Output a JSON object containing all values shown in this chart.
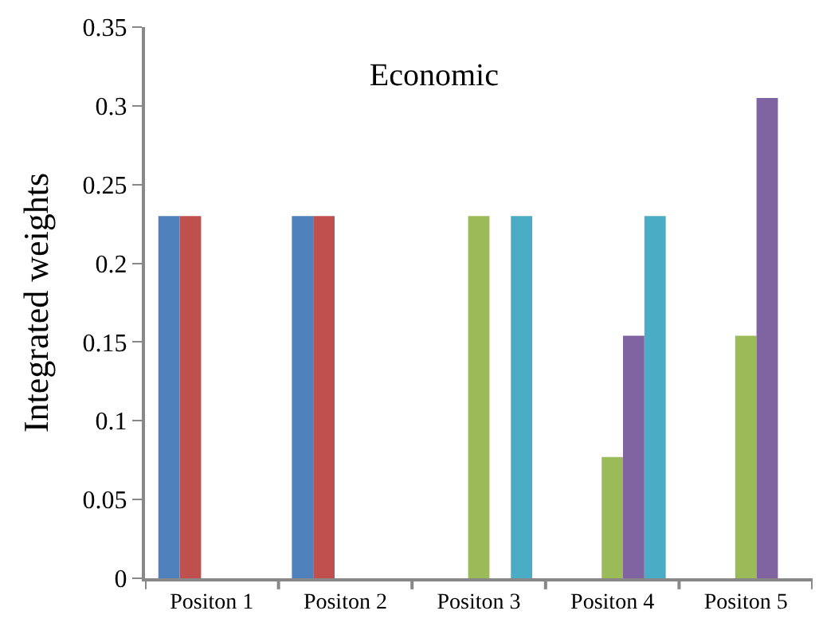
{
  "chart_data": {
    "type": "bar",
    "title": "Economic",
    "ylabel": "Integrated weights",
    "categories": [
      "Positon 1",
      "Positon 2",
      "Positon 3",
      "Positon 4",
      "Positon 5"
    ],
    "series": [
      {
        "color": "#4f81bd",
        "values": [
          0.23,
          0.23,
          0,
          0,
          0
        ]
      },
      {
        "color": "#c0504d",
        "values": [
          0.23,
          0.23,
          0,
          0,
          0
        ]
      },
      {
        "color": "#9bbb59",
        "values": [
          0,
          0,
          0.23,
          0.077,
          0.154
        ]
      },
      {
        "color": "#8064a2",
        "values": [
          0,
          0,
          0,
          0.154,
          0.305
        ]
      },
      {
        "color": "#4bacc6",
        "values": [
          0,
          0,
          0.23,
          0.23,
          0
        ]
      }
    ],
    "ylim": [
      0,
      0.35
    ],
    "yticks": [
      0,
      0.05,
      0.1,
      0.15,
      0.2,
      0.25,
      0.3,
      0.35
    ]
  }
}
